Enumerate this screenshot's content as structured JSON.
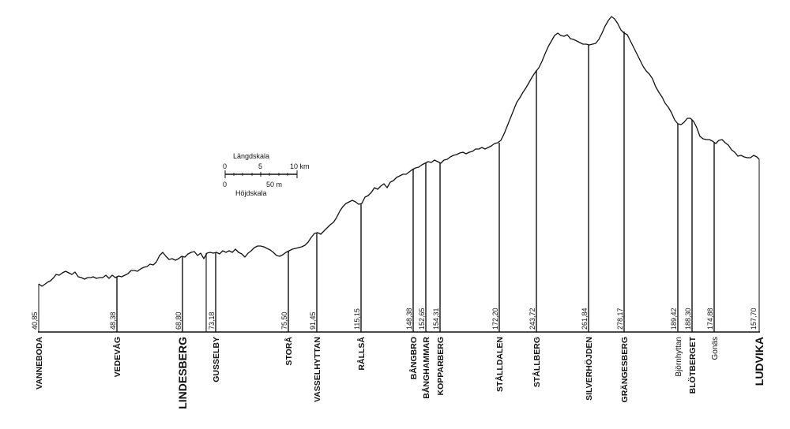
{
  "scale": {
    "length_title": "Längdskala",
    "height_title": "Höjdskala",
    "length_ticks": [
      "0",
      "5",
      "10 km"
    ],
    "height_ticks": [
      "0",
      "50 m"
    ]
  },
  "stations": [
    {
      "name": "VANNEBODA",
      "elevation": "40,85",
      "size": "normal"
    },
    {
      "name": "VEDEVÅG",
      "elevation": "48,38",
      "size": "normal"
    },
    {
      "name": "LINDESBERG",
      "elevation": "68,80",
      "size": "large"
    },
    {
      "name": "GUSSELBY",
      "elevation": "73,18",
      "size": "normal"
    },
    {
      "name": "STORÅ",
      "elevation": "75,50",
      "size": "normal"
    },
    {
      "name": "VASSELHYTTAN",
      "elevation": "91,45",
      "size": "normal"
    },
    {
      "name": "RÅLLSÅ",
      "elevation": "115,15",
      "size": "normal"
    },
    {
      "name": "BÅNGBRO",
      "elevation": "148,38",
      "size": "normal"
    },
    {
      "name": "BÅNGHAMMAR",
      "elevation": "152,65",
      "size": "normal"
    },
    {
      "name": "KOPPARBERG",
      "elevation": "154,31",
      "size": "normal"
    },
    {
      "name": "STÅLLDALEN",
      "elevation": "172,20",
      "size": "normal"
    },
    {
      "name": "STÅLLBERG",
      "elevation": "243,72",
      "size": "normal"
    },
    {
      "name": "SILVERHÖJDEN",
      "elevation": "261,84",
      "size": "normal"
    },
    {
      "name": "GRÄNGESBERG",
      "elevation": "278,17",
      "size": "normal"
    },
    {
      "name": "Björnhyttan",
      "elevation": "189,42",
      "size": "light"
    },
    {
      "name": "BLÖTBERGET",
      "elevation": "188,30",
      "size": "normal"
    },
    {
      "name": "Gonäs",
      "elevation": "174,88",
      "size": "light"
    },
    {
      "name": "LUDVIKA",
      "elevation": "157,70",
      "size": "large"
    }
  ]
}
